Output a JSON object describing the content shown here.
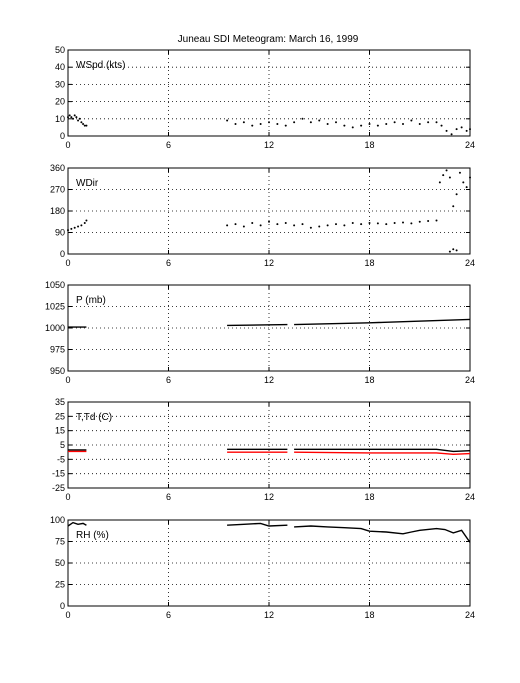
{
  "title": "Juneau SDI Meteogram:      March 16, 1999",
  "chart_data": [
    {
      "type": "scatter",
      "label": "WSpd (kts)",
      "xlim": [
        0,
        24
      ],
      "ylim": [
        0,
        50
      ],
      "xticks": [
        0,
        6,
        12,
        18,
        24
      ],
      "yticks": [
        0,
        10,
        20,
        30,
        40,
        50
      ],
      "grid": true,
      "series": [
        {
          "color": "#000000",
          "segments": [
            {
              "x": [
                0.0,
                0.1,
                0.2,
                0.3,
                0.4,
                0.5,
                0.6,
                0.7,
                0.8,
                0.9,
                1.0,
                1.1
              ],
              "y": [
                11,
                12,
                11,
                10,
                12,
                11,
                9,
                10,
                8,
                7,
                6,
                6
              ]
            },
            {
              "x": [
                9.5,
                10.0,
                10.5,
                11.0,
                11.5,
                12.0,
                12.5,
                13.0,
                13.5,
                14.0,
                14.5,
                15.0,
                15.5,
                16.0,
                16.5,
                17.0,
                17.5,
                18.0,
                18.5,
                19.0,
                19.5,
                20.0,
                20.5,
                21.0,
                21.5,
                22.0,
                22.3,
                22.6,
                22.9,
                23.2,
                23.5,
                23.8,
                24.0
              ],
              "y": [
                9,
                7,
                8,
                6,
                7,
                8,
                7,
                6,
                8,
                10,
                8,
                9,
                7,
                8,
                6,
                5,
                6,
                7,
                6,
                7,
                8,
                7,
                9,
                7,
                8,
                8,
                6,
                3,
                1,
                4,
                5,
                3,
                4
              ]
            }
          ]
        }
      ]
    },
    {
      "type": "scatter",
      "label": "WDir",
      "xlim": [
        0,
        24
      ],
      "ylim": [
        0,
        360
      ],
      "xticks": [
        0,
        6,
        12,
        18,
        24
      ],
      "yticks": [
        0,
        90,
        180,
        270,
        360
      ],
      "grid": true,
      "series": [
        {
          "color": "#000000",
          "segments": [
            {
              "x": [
                0.0,
                0.2,
                0.4,
                0.6,
                0.8,
                1.0,
                1.1
              ],
              "y": [
                100,
                105,
                110,
                115,
                120,
                130,
                140
              ]
            },
            {
              "x": [
                9.5,
                10.0,
                10.5,
                11.0,
                11.5,
                12.0,
                12.5,
                13.0,
                13.5,
                14.0,
                14.5,
                15.0,
                15.5,
                16.0,
                16.5,
                17.0,
                17.5,
                18.0,
                18.5,
                19.0,
                19.5,
                20.0,
                20.5,
                21.0,
                21.5,
                22.0
              ],
              "y": [
                120,
                125,
                115,
                130,
                120,
                135,
                125,
                130,
                120,
                125,
                110,
                115,
                120,
                125,
                120,
                130,
                125,
                130,
                128,
                125,
                130,
                132,
                128,
                135,
                138,
                140
              ]
            },
            {
              "x": [
                22.2,
                22.4,
                22.6,
                22.8,
                23.0,
                23.2,
                23.4,
                23.6,
                23.8,
                24.0
              ],
              "y": [
                300,
                330,
                350,
                320,
                200,
                250,
                340,
                300,
                280,
                320
              ]
            },
            {
              "x": [
                22.8,
                23.0,
                23.2
              ],
              "y": [
                10,
                20,
                15
              ]
            }
          ]
        }
      ]
    },
    {
      "type": "line",
      "label": "P (mb)",
      "xlim": [
        0,
        24
      ],
      "ylim": [
        950,
        1050
      ],
      "xticks": [
        0,
        6,
        12,
        18,
        24
      ],
      "yticks": [
        950,
        975,
        1000,
        1025,
        1050
      ],
      "grid": true,
      "series": [
        {
          "color": "#000000",
          "segments": [
            {
              "x": [
                0.0,
                1.1
              ],
              "y": [
                1001,
                1001
              ]
            },
            {
              "x": [
                9.5,
                13.1
              ],
              "y": [
                1003,
                1004
              ]
            },
            {
              "x": [
                13.5,
                18.0,
                24.0
              ],
              "y": [
                1004,
                1006,
                1010
              ]
            }
          ]
        }
      ]
    },
    {
      "type": "line",
      "label": "T,Td (C)",
      "xlim": [
        0,
        24
      ],
      "ylim": [
        -25,
        35
      ],
      "xticks": [
        0,
        6,
        12,
        18,
        24
      ],
      "yticks": [
        -25,
        -15,
        -5,
        5,
        15,
        25,
        35
      ],
      "grid": true,
      "series": [
        {
          "color": "#000000",
          "segments": [
            {
              "x": [
                0.0,
                1.1
              ],
              "y": [
                1.5,
                1.5
              ]
            },
            {
              "x": [
                9.5,
                13.1
              ],
              "y": [
                2.0,
                2.0
              ]
            },
            {
              "x": [
                13.5,
                22.0,
                23.0,
                24.0
              ],
              "y": [
                2.0,
                2.0,
                0.5,
                1.0
              ]
            }
          ]
        },
        {
          "color": "#ff0000",
          "segments": [
            {
              "x": [
                0.0,
                1.1
              ],
              "y": [
                0.5,
                0.5
              ]
            },
            {
              "x": [
                9.5,
                13.1
              ],
              "y": [
                0.0,
                0.0
              ]
            },
            {
              "x": [
                13.5,
                18.0,
                22.0,
                23.0,
                24.0
              ],
              "y": [
                0.0,
                -0.5,
                -0.5,
                -1.5,
                -1.0
              ]
            }
          ]
        }
      ]
    },
    {
      "type": "line",
      "label": "RH (%)",
      "xlim": [
        0,
        24
      ],
      "ylim": [
        0,
        100
      ],
      "xticks": [
        0,
        6,
        12,
        18,
        24
      ],
      "yticks": [
        0,
        25,
        50,
        75,
        100
      ],
      "grid": true,
      "series": [
        {
          "color": "#000000",
          "segments": [
            {
              "x": [
                0.0,
                0.3,
                0.6,
                0.9,
                1.1
              ],
              "y": [
                93,
                97,
                95,
                96,
                94
              ]
            },
            {
              "x": [
                9.5,
                10.5,
                11.5,
                12.0,
                13.1
              ],
              "y": [
                94,
                95,
                96,
                93,
                94
              ]
            },
            {
              "x": [
                13.5,
                14.5,
                15.5,
                16.5,
                17.5,
                18.0,
                19.0,
                20.0,
                20.5,
                21.0,
                22.0,
                22.5,
                23.0,
                23.5,
                24.0
              ],
              "y": [
                92,
                93,
                92,
                91,
                90,
                87,
                86,
                84,
                86,
                88,
                90,
                89,
                85,
                88,
                74
              ]
            }
          ]
        }
      ]
    }
  ]
}
